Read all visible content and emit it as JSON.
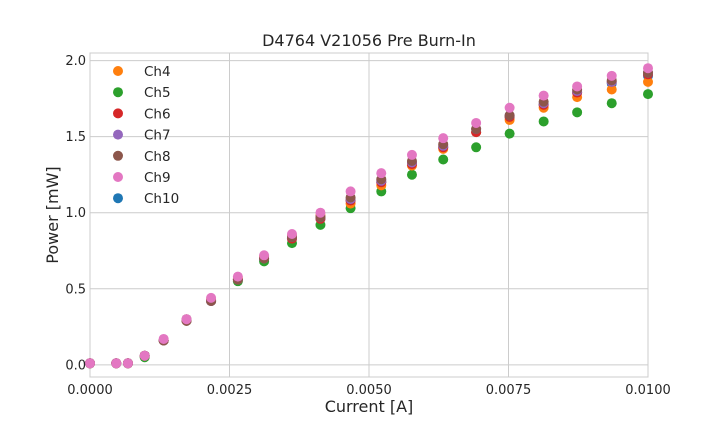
{
  "chart_data": {
    "type": "scatter",
    "title": "D4764 V21056 Pre Burn-In",
    "xlabel": "Current [A]",
    "ylabel": "Power [mW]",
    "xlim": [
      0.0,
      0.01
    ],
    "ylim": [
      -0.08,
      2.05
    ],
    "xticks": [
      0.0,
      0.0025,
      0.005,
      0.0075,
      0.01
    ],
    "xtick_labels": [
      "0.0000",
      "0.0025",
      "0.0050",
      "0.0075",
      "0.0100"
    ],
    "yticks": [
      0.0,
      0.5,
      1.0,
      1.5,
      2.0
    ],
    "ytick_labels": [
      "0.0",
      "0.5",
      "1.0",
      "1.5",
      "2.0"
    ],
    "grid": true,
    "legend_position": "top-left",
    "x": [
      0.0,
      0.00047,
      0.00068,
      0.00098,
      0.00132,
      0.00173,
      0.00217,
      0.00265,
      0.00312,
      0.00362,
      0.00413,
      0.00467,
      0.00522,
      0.00577,
      0.00633,
      0.00692,
      0.00752,
      0.00813,
      0.00873,
      0.00935,
      0.01
    ],
    "series": [
      {
        "name": "Ch4",
        "color": "#ff7f0e",
        "values": [
          0.01,
          0.01,
          0.01,
          0.06,
          0.16,
          0.3,
          0.43,
          0.57,
          0.71,
          0.85,
          0.98,
          1.06,
          1.18,
          1.31,
          1.42,
          1.53,
          1.61,
          1.69,
          1.76,
          1.81,
          1.86
        ]
      },
      {
        "name": "Ch5",
        "color": "#2ca02c",
        "values": [
          0.01,
          0.01,
          0.01,
          0.05,
          0.16,
          0.29,
          0.42,
          0.55,
          0.68,
          0.8,
          0.92,
          1.03,
          1.14,
          1.25,
          1.35,
          1.43,
          1.52,
          1.6,
          1.66,
          1.72,
          1.78
        ]
      },
      {
        "name": "Ch6",
        "color": "#d62728",
        "values": [
          0.01,
          0.01,
          0.01,
          0.06,
          0.16,
          0.29,
          0.42,
          0.56,
          0.7,
          0.83,
          0.96,
          1.08,
          1.2,
          1.32,
          1.43,
          1.53,
          1.63,
          1.71,
          1.79,
          1.86,
          1.91
        ]
      },
      {
        "name": "Ch7",
        "color": "#9467bd",
        "values": [
          0.01,
          0.01,
          0.01,
          0.06,
          0.16,
          0.3,
          0.42,
          0.56,
          0.7,
          0.84,
          0.97,
          1.09,
          1.21,
          1.33,
          1.44,
          1.55,
          1.64,
          1.72,
          1.8,
          1.86,
          1.92
        ]
      },
      {
        "name": "Ch8",
        "color": "#8c564b",
        "values": [
          0.01,
          0.01,
          0.01,
          0.06,
          0.16,
          0.29,
          0.42,
          0.56,
          0.7,
          0.84,
          0.97,
          1.1,
          1.22,
          1.34,
          1.45,
          1.55,
          1.64,
          1.73,
          1.81,
          1.87,
          1.92
        ]
      },
      {
        "name": "Ch9",
        "color": "#e377c2",
        "values": [
          0.01,
          0.01,
          0.01,
          0.06,
          0.17,
          0.3,
          0.44,
          0.58,
          0.72,
          0.86,
          1.0,
          1.14,
          1.26,
          1.38,
          1.49,
          1.59,
          1.69,
          1.77,
          1.83,
          1.9,
          1.95
        ]
      },
      {
        "name": "Ch10",
        "color": "#1f77b4",
        "values": [
          0.01,
          0.01,
          0.01,
          0.06,
          0.16,
          0.29,
          0.42,
          0.56,
          0.69,
          0.83,
          0.96,
          1.08,
          1.2,
          1.32,
          1.43,
          1.53,
          1.63,
          1.71,
          1.79,
          1.85,
          1.9
        ]
      }
    ],
    "draw_order": [
      "Ch10",
      "Ch5",
      "Ch4",
      "Ch6",
      "Ch7",
      "Ch8",
      "Ch9"
    ]
  }
}
